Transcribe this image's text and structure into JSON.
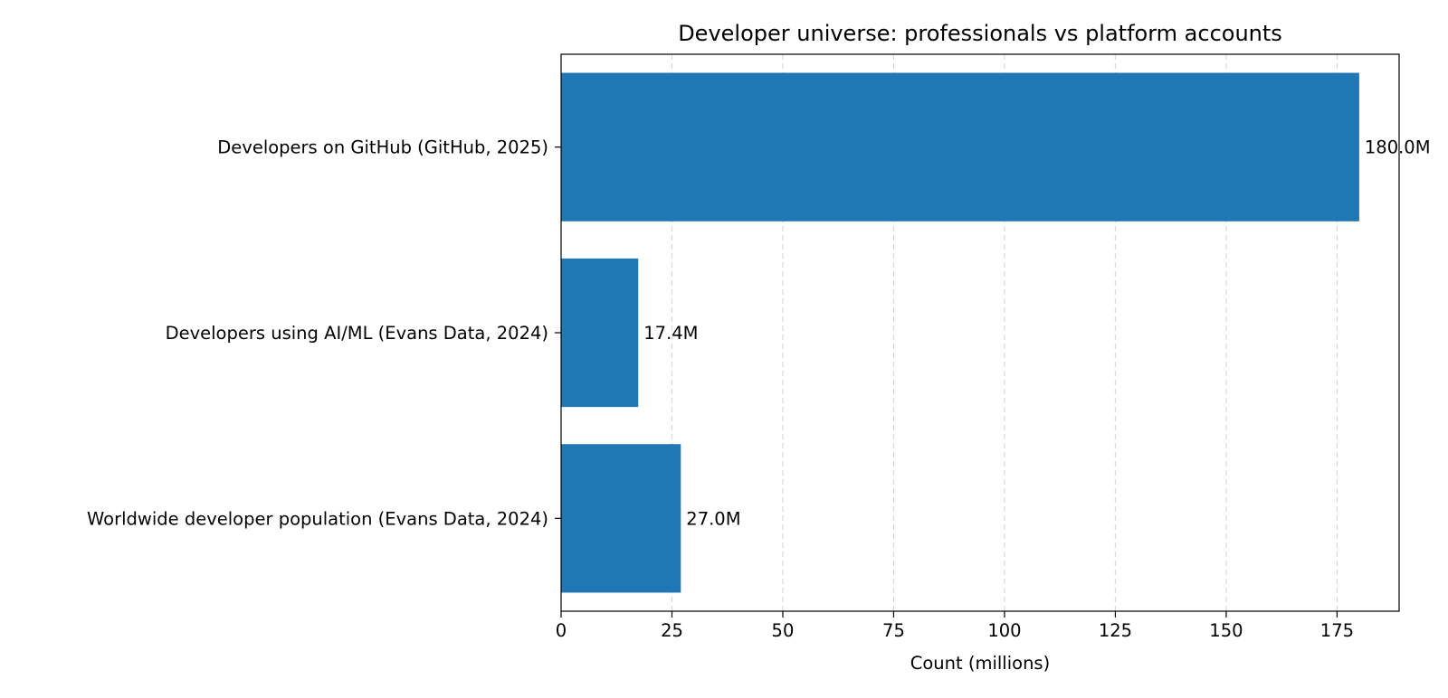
{
  "chart_data": {
    "type": "bar",
    "orientation": "horizontal",
    "title": "Developer universe: professionals vs platform accounts",
    "xlabel": "Count (millions)",
    "ylabel": "",
    "xlim": [
      0,
      189
    ],
    "xticks": [
      0,
      25,
      50,
      75,
      100,
      125,
      150,
      175
    ],
    "grid": "x-dashed",
    "bar_color": "#1f77b4",
    "categories": [
      "Developers on GitHub (GitHub, 2025)",
      "Developers using AI/ML (Evans Data, 2024)",
      "Worldwide developer population (Evans Data, 2024)"
    ],
    "values": [
      180.0,
      17.4,
      27.0
    ],
    "data_labels": [
      "180.0M",
      "17.4M",
      "27.0M"
    ]
  }
}
